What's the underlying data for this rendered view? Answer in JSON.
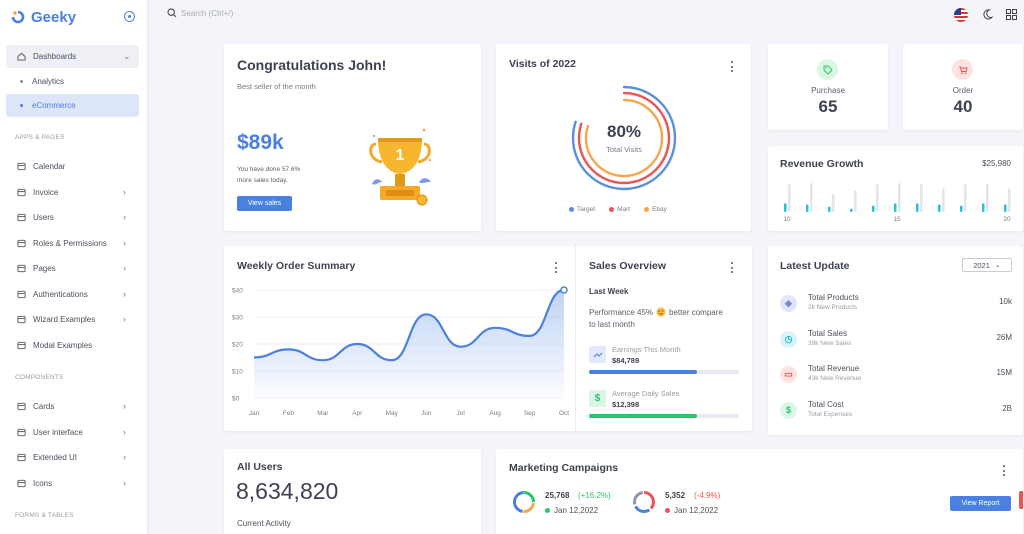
{
  "brand": {
    "name": "Geeky"
  },
  "sidebar": {
    "dashboards": "Dashboards",
    "analytics": "Analytics",
    "ecommerce": "eCommerce",
    "section_apps": "APPS & PAGES",
    "apps": [
      {
        "label": "Calendar",
        "icon": "calendar-icon"
      },
      {
        "label": "Invoice",
        "icon": "invoice-icon"
      },
      {
        "label": "Users",
        "icon": "user-icon"
      },
      {
        "label": "Roles & Permissions",
        "icon": "shield-icon"
      },
      {
        "label": "Pages",
        "icon": "pages-icon"
      },
      {
        "label": "Authentications",
        "icon": "auth-icon"
      },
      {
        "label": "Wizard Examples",
        "icon": "wizard-icon"
      },
      {
        "label": "Modal Examples",
        "icon": "modal-icon"
      }
    ],
    "section_components": "COMPONENTS",
    "components": [
      {
        "label": "Cards",
        "icon": "cards-icon"
      },
      {
        "label": "User interface",
        "icon": "ui-icon"
      },
      {
        "label": "Extended UI",
        "icon": "extended-icon"
      },
      {
        "label": "Icons",
        "icon": "icons-icon"
      }
    ],
    "section_forms": "FORMS & TABLES"
  },
  "topbar": {
    "search_placeholder": "Search (Ctrl+/)"
  },
  "congrats": {
    "title": "Congratulations John!",
    "subtitle": "Best seller of the month",
    "amount": "$89k",
    "note1": "You have done 57.6%",
    "note2": "more sales today.",
    "button": "View sales",
    "trophy_text": "1"
  },
  "visits": {
    "title": "Visits of 2022",
    "percent": "80%",
    "label": "Total Visits",
    "legend": [
      {
        "name": "Target",
        "color": "#5b8ee0"
      },
      {
        "name": "Mart",
        "color": "#ea5455"
      },
      {
        "name": "Ebay",
        "color": "#f6a54a"
      }
    ]
  },
  "purchase": {
    "label": "Purchase",
    "value": "65"
  },
  "order": {
    "label": "Order",
    "value": "40"
  },
  "revenue": {
    "title": "Revenue Growth",
    "total": "$25,980",
    "ticks": [
      "10",
      "15",
      "20"
    ]
  },
  "weekly": {
    "title": "Weekly Order Summary"
  },
  "sales_overview": {
    "title": "Sales Overview",
    "heading": "Last Week",
    "text1": "Performance 45%",
    "text2": "better compare",
    "text3": "to last month",
    "earnings_label": "Earnings This Month",
    "earnings_value": "$84,789",
    "earnings_progress": 0.72,
    "avg_label": "Average Daily Sales",
    "avg_value": "$12,398",
    "avg_progress": 0.72
  },
  "latest": {
    "title": "Latest Update",
    "year": "2021",
    "rows": [
      {
        "name": "Total Products",
        "sub": "2k New Products",
        "value": "10k",
        "color": "#e2e6fb",
        "fg": "#6b7fdc"
      },
      {
        "name": "Total Sales",
        "sub": "39k New Sales",
        "value": "26M",
        "color": "#d9f4f8",
        "fg": "#26b6cc"
      },
      {
        "name": "Total Revenue",
        "sub": "43k New Revenue",
        "value": "15M",
        "color": "#fde2e2",
        "fg": "#ea5455"
      },
      {
        "name": "Total Cost",
        "sub": "Total Expenses",
        "value": "2B",
        "color": "#dcf6e6",
        "fg": "#28c76f"
      }
    ]
  },
  "all_users": {
    "title": "All Users",
    "value": "8,634,820",
    "activity": "Current Activity"
  },
  "marketing": {
    "title": "Marketing Campaigns",
    "c1_value": "25,768",
    "c1_change": "(+16.2%)",
    "c1_date": "Jan 12,2022",
    "c2_value": "5,352",
    "c2_change": "(-4.9%)",
    "c2_date": "Jan 12,2022",
    "button": "View Report"
  },
  "chart_data": [
    {
      "type": "area",
      "title": "Weekly Order Summary",
      "categories": [
        "Jan",
        "Feb",
        "Mar",
        "Apr",
        "May",
        "Jun",
        "Jul",
        "Aug",
        "Sep",
        "Oct"
      ],
      "yticks": [
        "$0",
        "$10",
        "$20",
        "$30",
        "$40"
      ],
      "ylim": [
        0,
        40
      ],
      "series": [
        {
          "values": [
            15,
            18,
            14,
            20,
            14,
            31,
            19,
            26,
            23,
            40
          ]
        }
      ]
    },
    {
      "type": "bar",
      "title": "Revenue Growth",
      "x": [
        10,
        11,
        12,
        13,
        14,
        15,
        16,
        17,
        18,
        19,
        20
      ],
      "series": [
        {
          "values": [
            8,
            7,
            5,
            3,
            6,
            8,
            8,
            7,
            6,
            8,
            7
          ]
        },
        {
          "values": [
            26,
            27,
            17,
            20,
            26,
            27,
            26,
            22,
            26,
            26,
            22
          ]
        }
      ]
    },
    {
      "type": "pie",
      "title": "Visits of 2022",
      "series": [
        {
          "name": "Target",
          "values": [
            80
          ]
        },
        {
          "name": "Mart",
          "values": [
            80
          ]
        },
        {
          "name": "Ebay",
          "values": [
            80
          ]
        }
      ]
    }
  ]
}
